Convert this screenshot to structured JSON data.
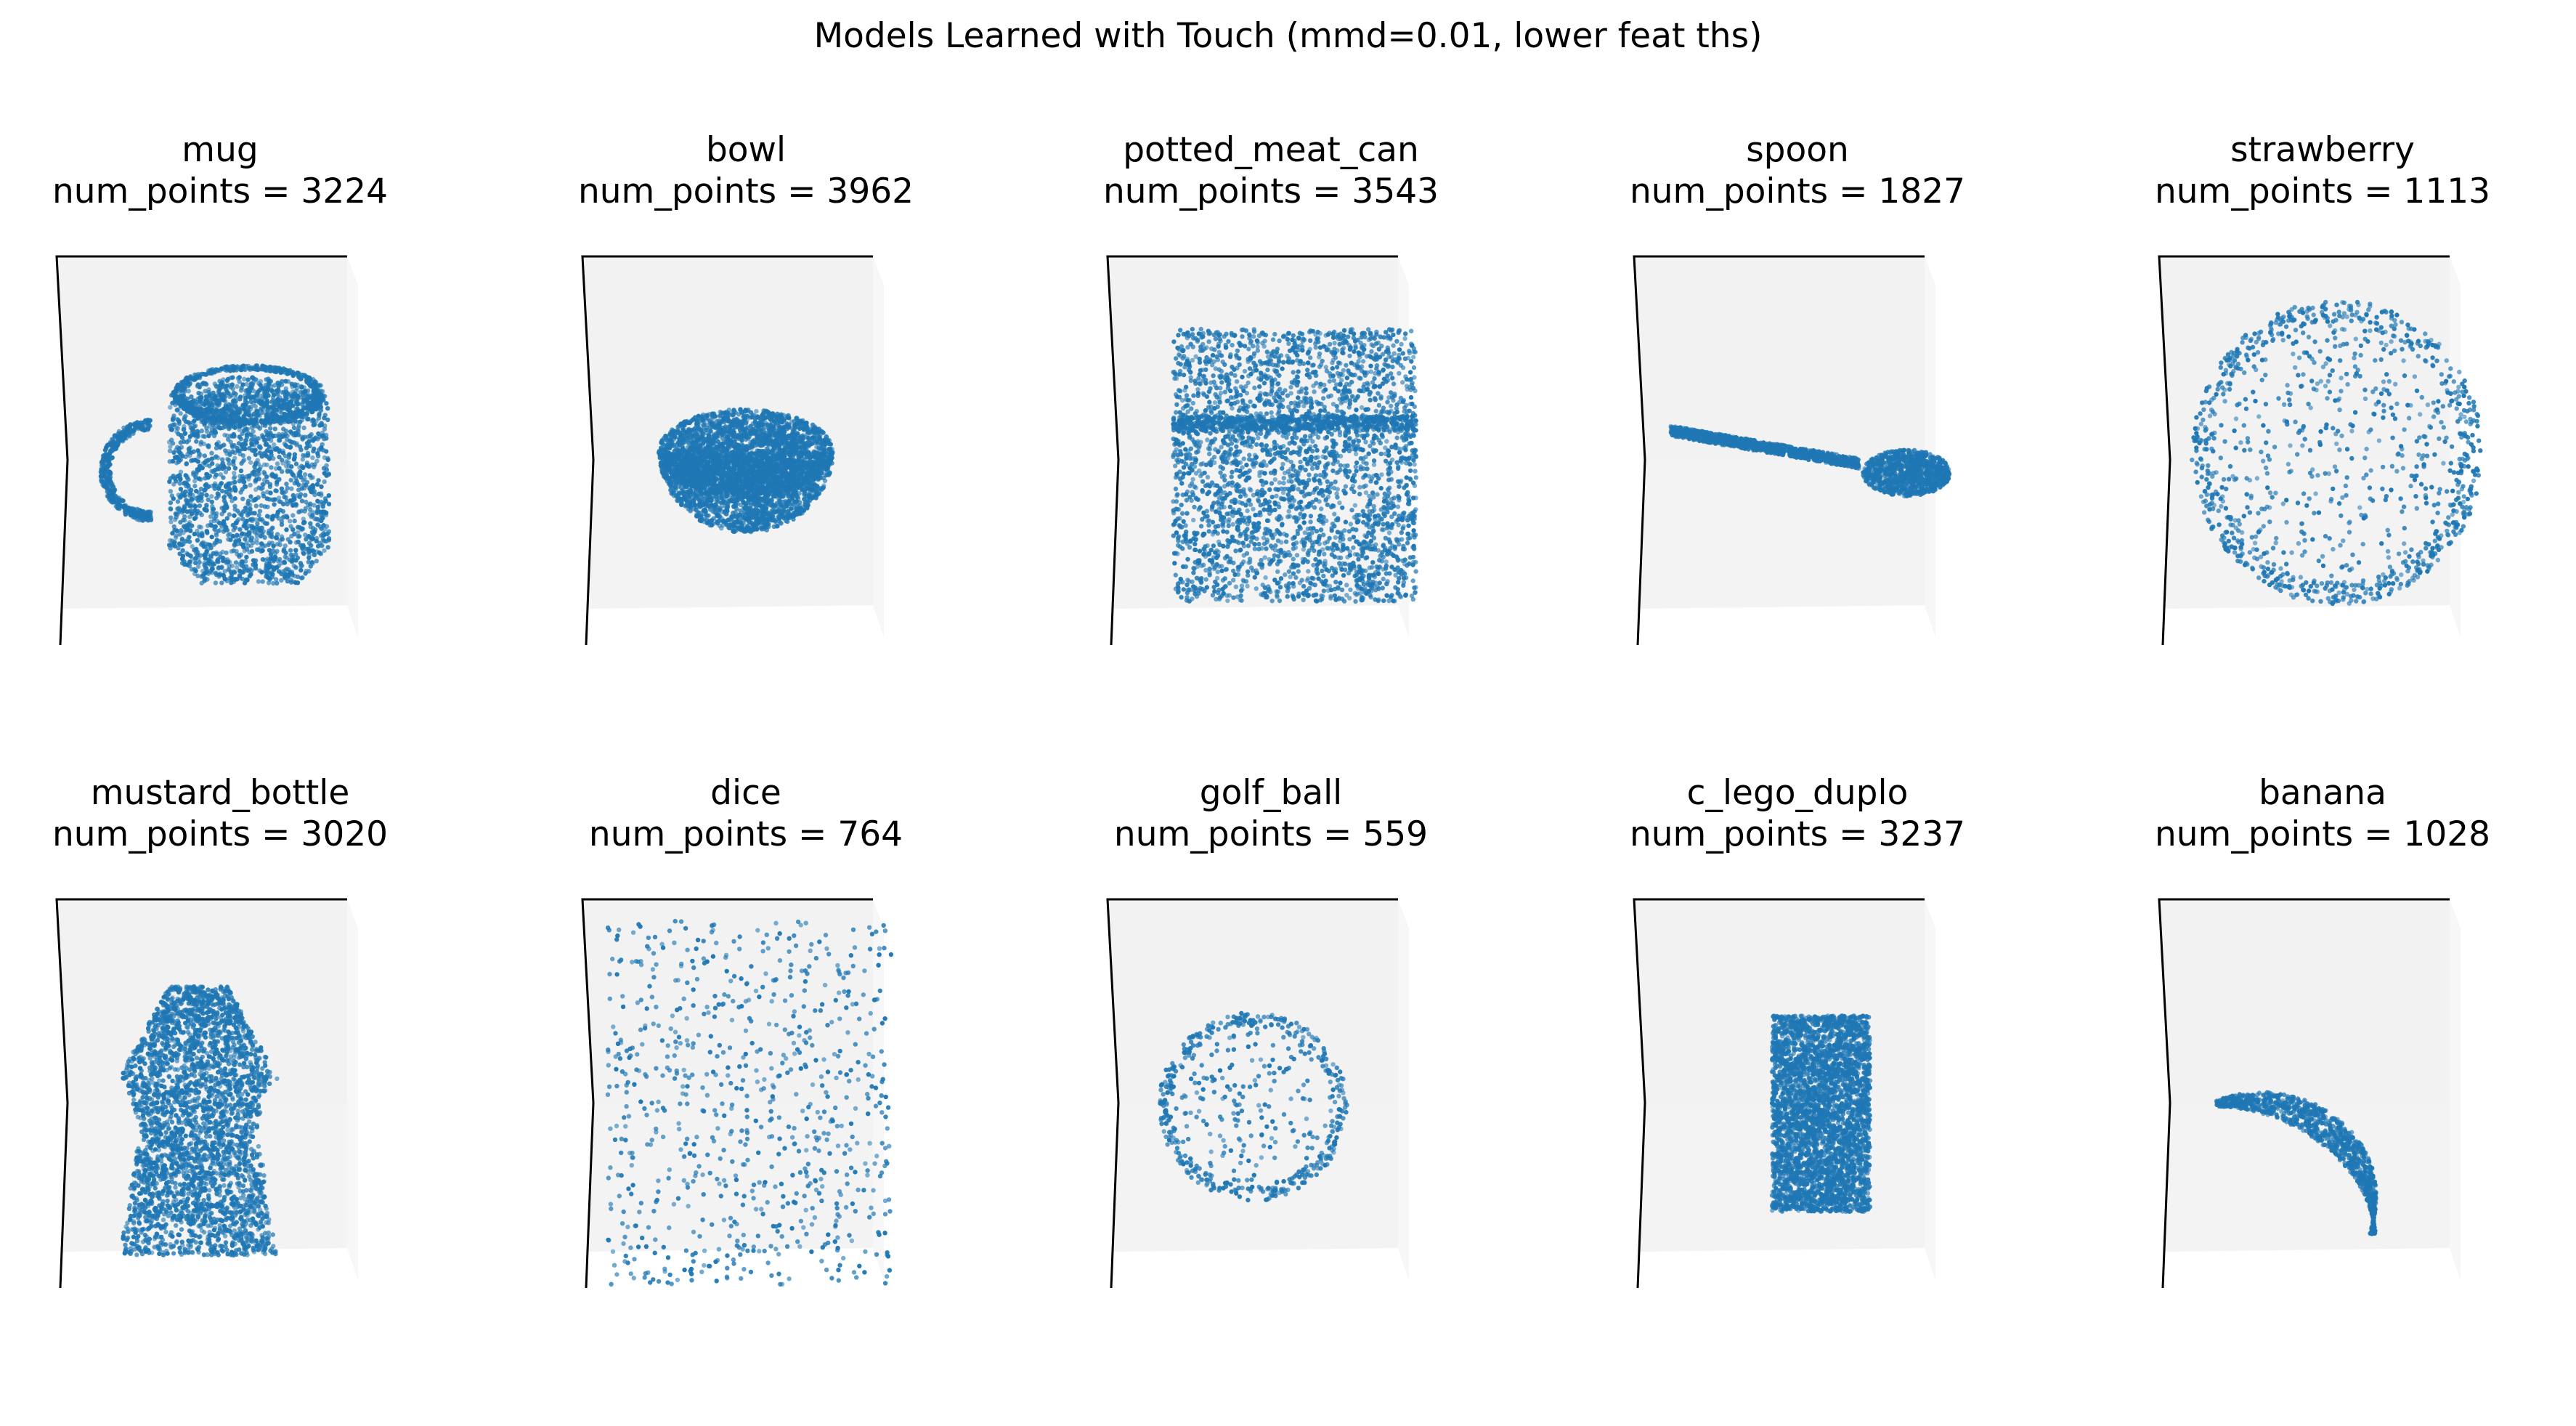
{
  "suptitle": "Models Learned with Touch (mmd=0.01, lower feat ths)",
  "num_points_label": "num_points",
  "point_color": "#1f77b4",
  "pane_color": "#f2f2f2",
  "chart_data": [
    {
      "type": "scatter",
      "name": "mug",
      "num_points": 3224,
      "shape": "mug"
    },
    {
      "type": "scatter",
      "name": "bowl",
      "num_points": 3962,
      "shape": "bowl"
    },
    {
      "type": "scatter",
      "name": "potted_meat_can",
      "num_points": 3543,
      "shape": "can"
    },
    {
      "type": "scatter",
      "name": "spoon",
      "num_points": 1827,
      "shape": "spoon"
    },
    {
      "type": "scatter",
      "name": "strawberry",
      "num_points": 1113,
      "shape": "strawberry"
    },
    {
      "type": "scatter",
      "name": "mustard_bottle",
      "num_points": 3020,
      "shape": "mustard"
    },
    {
      "type": "scatter",
      "name": "dice",
      "num_points": 764,
      "shape": "dice"
    },
    {
      "type": "scatter",
      "name": "golf_ball",
      "num_points": 559,
      "shape": "golf"
    },
    {
      "type": "scatter",
      "name": "c_lego_duplo",
      "num_points": 3237,
      "shape": "lego"
    },
    {
      "type": "scatter",
      "name": "banana",
      "num_points": 1028,
      "shape": "banana"
    }
  ]
}
